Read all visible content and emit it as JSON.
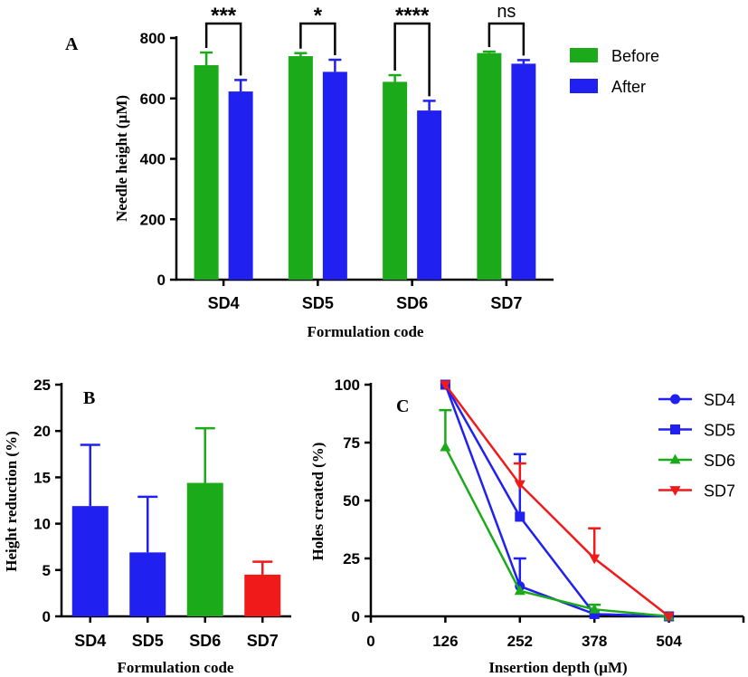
{
  "chart_data": [
    {
      "panel": "A",
      "type": "bar",
      "xlabel": "Formulation code",
      "ylabel": "Needle height (µM)",
      "ylim": [
        0,
        800
      ],
      "yticks": [
        0,
        200,
        400,
        600,
        800
      ],
      "categories": [
        "SD4",
        "SD5",
        "SD6",
        "SD7"
      ],
      "series": [
        {
          "name": "Before",
          "color": "#1aaa1a",
          "values": [
            710,
            740,
            655,
            750
          ],
          "errors": [
            42,
            10,
            22,
            5
          ]
        },
        {
          "name": "After",
          "color": "#2020f0",
          "values": [
            623,
            688,
            560,
            715
          ],
          "errors": [
            38,
            40,
            32,
            12
          ]
        }
      ],
      "significance": [
        "***",
        "*",
        "****",
        "ns"
      ],
      "legend": "top-right"
    },
    {
      "panel": "B",
      "type": "bar",
      "xlabel": "Formulation code",
      "ylabel": "Height reduction (%)",
      "ylim": [
        0,
        25
      ],
      "yticks": [
        0,
        5,
        10,
        15,
        20,
        25
      ],
      "categories": [
        "SD4",
        "SD5",
        "SD6",
        "SD7"
      ],
      "values": [
        11.9,
        6.9,
        14.4,
        4.5
      ],
      "errors": [
        6.6,
        6.0,
        5.9,
        1.4
      ],
      "colors": [
        "#2020f0",
        "#2020f0",
        "#1aaa1a",
        "#f01a1a"
      ]
    },
    {
      "panel": "C",
      "type": "line",
      "xlabel": "Insertion depth (µM)",
      "ylabel": "Holes created (%)",
      "xlim": [
        0,
        630
      ],
      "ylim": [
        0,
        100
      ],
      "xticks": [
        0,
        126,
        252,
        378,
        504
      ],
      "yticks": [
        0,
        25,
        50,
        75,
        100
      ],
      "x": [
        126,
        252,
        378,
        504
      ],
      "series": [
        {
          "name": "SD4",
          "color": "#2020f0",
          "marker": "circle",
          "values": [
            100,
            13,
            1,
            0
          ],
          "errors": [
            0,
            12,
            0,
            0
          ]
        },
        {
          "name": "SD5",
          "color": "#2020f0",
          "marker": "square",
          "values": [
            100,
            43,
            1,
            0
          ],
          "errors": [
            0,
            27,
            0,
            0
          ]
        },
        {
          "name": "SD6",
          "color": "#1aaa1a",
          "marker": "triangle-up",
          "values": [
            73,
            11,
            3,
            0
          ],
          "errors": [
            16,
            0,
            2,
            0
          ]
        },
        {
          "name": "SD7",
          "color": "#f01a1a",
          "marker": "triangle-down",
          "values": [
            100,
            57,
            25,
            0
          ],
          "errors": [
            0,
            9,
            13,
            0
          ]
        }
      ],
      "legend": "top-right"
    }
  ]
}
